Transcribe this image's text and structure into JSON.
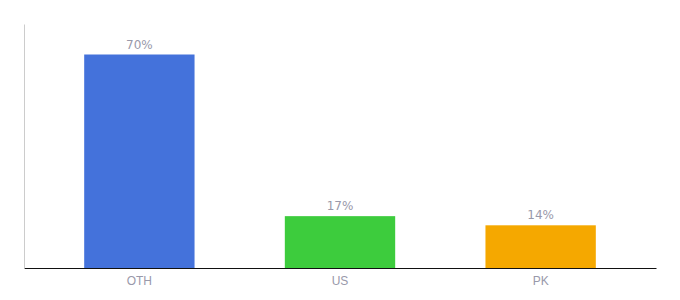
{
  "chart_data": {
    "type": "bar",
    "categories": [
      "OTH",
      "US",
      "PK"
    ],
    "values": [
      70,
      17,
      14
    ],
    "value_labels": [
      "70%",
      "17%",
      "14%"
    ],
    "colors": [
      "#4472db",
      "#3dcc3d",
      "#f5a800"
    ],
    "ylim": [
      0,
      80
    ],
    "data_labels": true,
    "tick_labels": "x"
  }
}
